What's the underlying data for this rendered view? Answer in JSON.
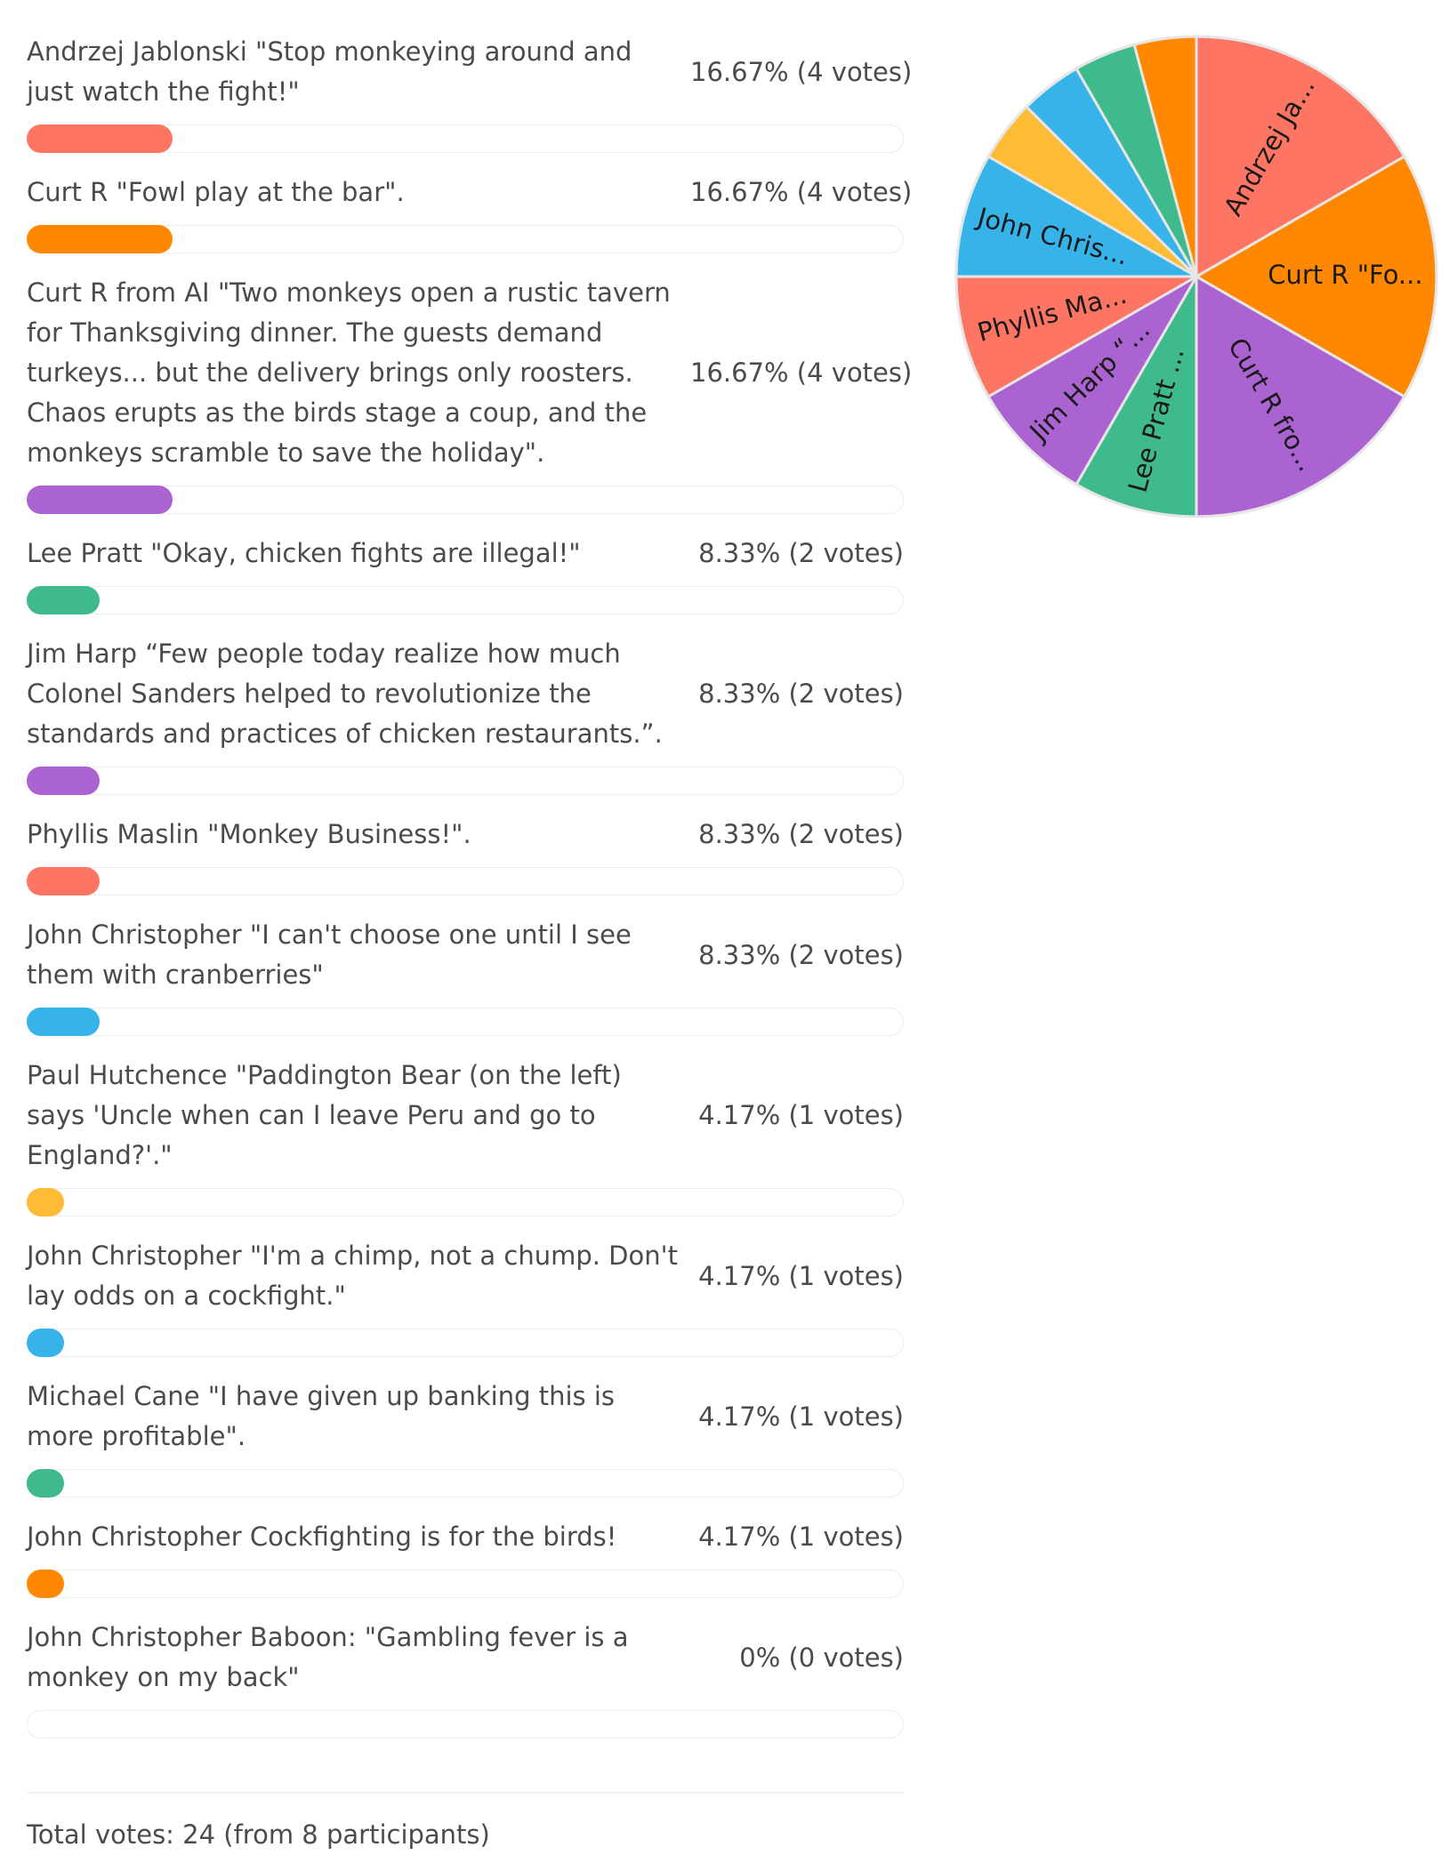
{
  "poll": {
    "options": [
      {
        "label": "Andrzej Jablonski \"Stop monkeying around and just watch the fight!\"",
        "pie_label": "Andrzej Ja...",
        "percent_text": "16.67% (4 votes)",
        "votes": 4,
        "percent": 16.67,
        "color": "#ff7563"
      },
      {
        "label": "Curt R \"Fowl play at the bar\".",
        "pie_label": "Curt R \"Fo...",
        "percent_text": "16.67% (4 votes)",
        "votes": 4,
        "percent": 16.67,
        "color": "#ff8800"
      },
      {
        "label": "Curt R from AI \"Two monkeys open a rustic tavern for Thanksgiving dinner. The guests demand turkeys... but the delivery brings only roosters. Chaos erupts as the birds stage a coup, and the monkeys scramble to save the holiday\".",
        "pie_label": "Curt R fro...",
        "percent_text": "16.67% (4 votes)",
        "votes": 4,
        "percent": 16.67,
        "color": "#ab63d1"
      },
      {
        "label": "Lee Pratt \"Okay, chicken fights are illegal!\"",
        "pie_label": "Lee Pratt ...",
        "percent_text": "8.33% (2 votes)",
        "votes": 2,
        "percent": 8.33,
        "color": "#3fba8c"
      },
      {
        "label": "Jim Harp “Few people today realize how much Colonel Sanders helped to revolutionize the standards and practices of chicken restaurants.”.",
        "pie_label": "Jim Harp “...",
        "percent_text": "8.33% (2 votes)",
        "votes": 2,
        "percent": 8.33,
        "color": "#ab63d1"
      },
      {
        "label": "Phyllis Maslin \"Monkey Business!\".",
        "pie_label": "Phyllis Ma...",
        "percent_text": "8.33% (2 votes)",
        "votes": 2,
        "percent": 8.33,
        "color": "#ff7563"
      },
      {
        "label": "John Christopher \"I can't choose one until I see them with cranberries\"",
        "pie_label": "John Chris...",
        "percent_text": "8.33% (2 votes)",
        "votes": 2,
        "percent": 8.33,
        "color": "#36b3e8"
      },
      {
        "label": "Paul Hutchence \"Paddington Bear (on the left) says 'Uncle when can I leave Peru and go to England?'.\"",
        "pie_label": "",
        "percent_text": "4.17% (1 votes)",
        "votes": 1,
        "percent": 4.17,
        "color": "#ffbb33"
      },
      {
        "label": "John Christopher \"I'm a chimp, not a chump. Don't lay odds on a cockfight.\"",
        "pie_label": "",
        "percent_text": "4.17% (1 votes)",
        "votes": 1,
        "percent": 4.17,
        "color": "#36b3e8"
      },
      {
        "label": "Michael Cane \"I have given up banking this is more profitable\".",
        "pie_label": "",
        "percent_text": "4.17% (1 votes)",
        "votes": 1,
        "percent": 4.17,
        "color": "#3fba8c"
      },
      {
        "label": "John Christopher Cockfighting is for the birds!",
        "pie_label": "",
        "percent_text": "4.17% (1 votes)",
        "votes": 1,
        "percent": 4.17,
        "color": "#ff8800"
      },
      {
        "label": "John Christopher Baboon: \"Gambling fever is a monkey on my back\"",
        "pie_label": "",
        "percent_text": "0% (0 votes)",
        "votes": 0,
        "percent": 0,
        "color": "#cccccc"
      }
    ],
    "total_text": "Total votes: 24 (from 8 participants)"
  },
  "chart_data": {
    "type": "pie",
    "labels": [
      "Andrzej Ja...",
      "Curt R \"Fo...",
      "Curt R fro...",
      "Lee Pratt ...",
      "Jim Harp “...",
      "Phyllis Ma...",
      "John Chris...",
      "",
      "",
      "",
      "",
      ""
    ],
    "values": [
      4,
      4,
      4,
      2,
      2,
      2,
      2,
      1,
      1,
      1,
      1,
      0
    ],
    "colors": [
      "#ff7563",
      "#ff8800",
      "#ab63d1",
      "#3fba8c",
      "#ab63d1",
      "#ff7563",
      "#36b3e8",
      "#ffbb33",
      "#36b3e8",
      "#3fba8c",
      "#ff8800",
      "#cccccc"
    ],
    "title": ""
  }
}
